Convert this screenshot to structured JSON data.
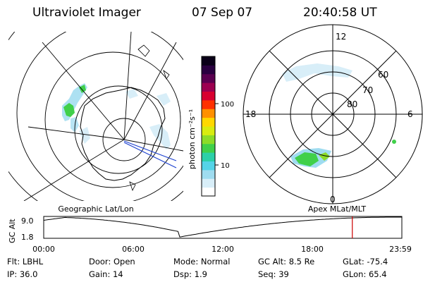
{
  "header": {
    "title": "Ultraviolet Imager",
    "date": "07 Sep 07",
    "time": "20:40:58 UT"
  },
  "geo_panel": {
    "label": "Geographic Lat/Lon"
  },
  "polar_panel": {
    "label": "Apex MLat/MLT",
    "mlt_labels": {
      "top": "12",
      "bottom": "0",
      "left": "18",
      "right": "6"
    },
    "lat_labels": [
      "60",
      "70",
      "80"
    ]
  },
  "colorbar": {
    "unit_label": "photon cm⁻²s⁻¹",
    "ticks": [
      "100",
      "10"
    ],
    "colors": [
      "#ffffff",
      "#d8eef8",
      "#9fdcf0",
      "#55d4e8",
      "#2cd0a8",
      "#40d04a",
      "#8cdc28",
      "#d8ec10",
      "#ffd800",
      "#ff9000",
      "#ff3000",
      "#d80030",
      "#9c0050",
      "#5a0050",
      "#2a0040",
      "#0a0018"
    ]
  },
  "altitude_plot": {
    "ylabel": "GC Alt",
    "y_ticks": [
      "9.0",
      "1.8"
    ],
    "x_ticks": [
      "00:00",
      "06:00",
      "12:00",
      "18:00",
      "23:59"
    ],
    "current_time_marker_hours": 20.68,
    "marker_color": "#cc0000"
  },
  "info": {
    "filter": "Flt: LBHL",
    "door": "Door: Open",
    "mode": "Mode: Normal",
    "gc_alt": "GC Alt: 8.5 Re",
    "glat": "GLat: -75.4",
    "ip": "IP: 36.0",
    "gain": "Gain: 14",
    "dsp": "Dsp:   1.9",
    "seq": "Seq: 39",
    "glon": "GLon:  65.4"
  }
}
